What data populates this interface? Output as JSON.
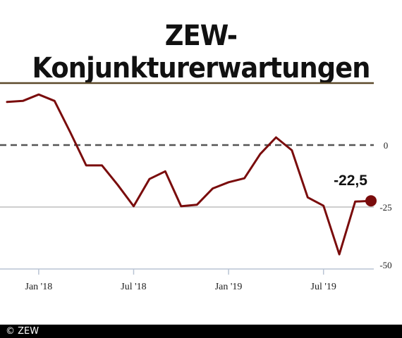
{
  "title": "ZEW-Konjunkturerwartungen",
  "footer": "© ZEW",
  "colors": {
    "line": "#7a0c0c",
    "top_rule": "#5c4a2a",
    "zero_line": "#555555",
    "grid": "#b9c4d4"
  },
  "chart_data": {
    "type": "line",
    "title": "ZEW-Konjunkturerwartungen",
    "xlabel": "",
    "ylabel": "",
    "ylim": [
      -50,
      25
    ],
    "grid": "horizontal at -25 and -50",
    "x_tick_labels": [
      "Jan '18",
      "Jul '18",
      "Jan '19",
      "Jul '19"
    ],
    "y_tick_labels": [
      "0",
      "-25",
      "-50"
    ],
    "x": [
      "2017-11",
      "2017-12",
      "2018-01",
      "2018-02",
      "2018-03",
      "2018-04",
      "2018-05",
      "2018-06",
      "2018-07",
      "2018-08",
      "2018-09",
      "2018-10",
      "2018-11",
      "2018-12",
      "2019-01",
      "2019-02",
      "2019-03",
      "2019-04",
      "2019-05",
      "2019-06",
      "2019-07",
      "2019-08",
      "2019-09",
      "2019-10"
    ],
    "values": [
      17.4,
      17.8,
      20.4,
      17.8,
      5.1,
      -8.2,
      -8.2,
      -16.1,
      -24.7,
      -13.7,
      -10.6,
      -24.7,
      -24.1,
      -17.5,
      -15.0,
      -13.4,
      -3.6,
      3.1,
      -2.1,
      -21.1,
      -24.5,
      -44.1,
      -22.8,
      -22.5
    ],
    "annotations": [
      {
        "label": "-22,5",
        "x": "2019-10",
        "y": -22.5
      }
    ]
  }
}
